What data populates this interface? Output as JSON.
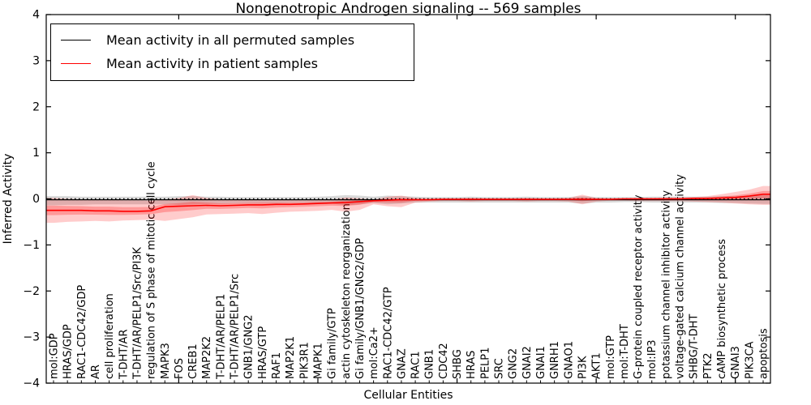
{
  "title": "Nongenotropic Androgen signaling -- 569 samples",
  "legend": {
    "items": [
      {
        "label": "Mean activity in all permuted samples",
        "color": "#000000"
      },
      {
        "label": "Mean activity in patient samples",
        "color": "#ff0000"
      }
    ]
  },
  "chart_data": {
    "type": "line",
    "title": "Nongenotropic Androgen signaling -- 569 samples",
    "xlabel": "Cellular Entities",
    "ylabel": "Inferred Activity",
    "ylim": [
      -4,
      4
    ],
    "yticks": [
      -4,
      -3,
      -2,
      -1,
      0,
      1,
      2,
      3,
      4
    ],
    "grid": false,
    "legend_position": "upper left",
    "xticklabel_rotation": 90,
    "zero_line": {
      "y": 0,
      "style": "dotted",
      "color": "#000000"
    },
    "categories": [
      "mol:GDP",
      "HRAS/GDP",
      "RAC1-CDC42/GDP",
      "AR",
      "cell proliferation",
      "T-DHT/AR",
      "T-DHT/AR/PELP1/Src/PI3K",
      "regulation of S phase of mitotic cell cycle",
      "MAPK3",
      "FOS",
      "CREB1",
      "MAP2K2",
      "T-DHT/AR/PELP1",
      "T-DHT/AR/PELP1/Src",
      "GNB1/GNG2",
      "HRAS/GTP",
      "RAF1",
      "MAP2K1",
      "PIK3R1",
      "MAPK1",
      "Gi family/GTP",
      "actin cytoskeleton reorganization",
      "Gi family/GNB1/GNG2/GDP",
      "mol:Ca2+",
      "RAC1-CDC42/GTP",
      "GNAZ",
      "RAC1",
      "GNB1",
      "CDC42",
      "SHBG",
      "HRAS",
      "PELP1",
      "SRC",
      "GNG2",
      "GNAI2",
      "GNAI1",
      "GNRH1",
      "GNAO1",
      "PI3K",
      "AKT1",
      "mol:GTP",
      "mol:T-DHT",
      "G-protein coupled receptor activity",
      "mol:IP3",
      "potassium channel inhibitor activity",
      "voltage-gated calcium channel activity",
      "SHBG/T-DHT",
      "PTK2",
      "cAMP biosynthetic process",
      "GNAI3",
      "PIK3CA",
      "apoptosis"
    ],
    "series": [
      {
        "name": "Mean activity in all permuted samples",
        "color": "#000000",
        "band_color": "#000000",
        "band_opacity": 0.15,
        "values": [
          -0.02,
          -0.02,
          -0.02,
          -0.02,
          -0.02,
          -0.02,
          -0.02,
          -0.02,
          -0.02,
          -0.02,
          -0.02,
          -0.02,
          -0.02,
          -0.02,
          -0.02,
          -0.02,
          -0.02,
          -0.02,
          -0.02,
          -0.02,
          -0.02,
          -0.02,
          -0.02,
          -0.02,
          -0.02,
          -0.02,
          -0.02,
          -0.02,
          -0.02,
          -0.02,
          -0.02,
          -0.02,
          -0.02,
          -0.02,
          -0.02,
          -0.02,
          -0.02,
          -0.02,
          -0.02,
          -0.02,
          -0.02,
          -0.02,
          -0.02,
          -0.02,
          -0.02,
          -0.02,
          -0.02,
          -0.02,
          -0.02,
          -0.02,
          -0.02,
          -0.02
        ],
        "band_upper": [
          0.06,
          0.06,
          0.05,
          0.05,
          0.05,
          0.05,
          0.05,
          0.05,
          0.05,
          0.06,
          0.06,
          0.05,
          0.05,
          0.04,
          0.04,
          0.04,
          0.04,
          0.04,
          0.04,
          0.05,
          0.06,
          0.08,
          0.07,
          0.05,
          0.07,
          0.06,
          0.05,
          0.04,
          0.04,
          0.04,
          0.05,
          0.04,
          0.04,
          0.04,
          0.05,
          0.04,
          0.04,
          0.04,
          0.06,
          0.04,
          0.04,
          0.04,
          0.04,
          0.05,
          0.05,
          0.05,
          0.05,
          0.05,
          0.06,
          0.06,
          0.07,
          0.08
        ],
        "band_lower": [
          -0.14,
          -0.13,
          -0.13,
          -0.12,
          -0.12,
          -0.12,
          -0.12,
          -0.12,
          -0.12,
          -0.13,
          -0.12,
          -0.11,
          -0.11,
          -0.1,
          -0.1,
          -0.1,
          -0.1,
          -0.09,
          -0.09,
          -0.09,
          -0.1,
          -0.14,
          -0.12,
          -0.09,
          -0.12,
          -0.1,
          -0.08,
          -0.08,
          -0.08,
          -0.08,
          -0.08,
          -0.08,
          -0.08,
          -0.08,
          -0.08,
          -0.08,
          -0.08,
          -0.08,
          -0.1,
          -0.08,
          -0.08,
          -0.07,
          -0.07,
          -0.08,
          -0.08,
          -0.08,
          -0.08,
          -0.08,
          -0.09,
          -0.09,
          -0.1,
          -0.11
        ]
      },
      {
        "name": "Mean activity in patient samples",
        "color": "#ff0000",
        "band_color": "#ff0000",
        "band_opacity": 0.2,
        "values": [
          -0.25,
          -0.25,
          -0.25,
          -0.26,
          -0.26,
          -0.27,
          -0.27,
          -0.26,
          -0.17,
          -0.16,
          -0.15,
          -0.14,
          -0.15,
          -0.14,
          -0.13,
          -0.13,
          -0.12,
          -0.12,
          -0.11,
          -0.1,
          -0.09,
          -0.08,
          -0.06,
          -0.04,
          -0.03,
          -0.02,
          -0.02,
          -0.02,
          -0.01,
          -0.01,
          -0.01,
          -0.01,
          -0.01,
          -0.01,
          -0.01,
          -0.01,
          -0.01,
          -0.01,
          -0.01,
          -0.01,
          -0.01,
          0.0,
          0.0,
          0.0,
          0.0,
          0.0,
          0.01,
          0.01,
          0.02,
          0.03,
          0.06,
          0.1
        ],
        "band_upper": [
          0.02,
          0.0,
          -0.01,
          -0.02,
          -0.02,
          -0.03,
          -0.03,
          -0.04,
          -0.02,
          0.02,
          0.08,
          0.02,
          -0.01,
          -0.02,
          -0.02,
          -0.01,
          -0.02,
          -0.02,
          -0.03,
          -0.02,
          -0.02,
          0.03,
          0.01,
          -0.02,
          0.05,
          0.07,
          0.02,
          0.01,
          0.01,
          0.01,
          0.02,
          0.01,
          0.01,
          0.01,
          0.02,
          0.01,
          0.01,
          0.02,
          0.09,
          0.02,
          0.01,
          0.01,
          0.02,
          0.02,
          0.03,
          0.03,
          0.04,
          0.06,
          0.1,
          0.15,
          0.2,
          0.28
        ],
        "band_lower": [
          -0.52,
          -0.5,
          -0.49,
          -0.48,
          -0.49,
          -0.47,
          -0.46,
          -0.45,
          -0.48,
          -0.44,
          -0.4,
          -0.34,
          -0.33,
          -0.32,
          -0.31,
          -0.33,
          -0.3,
          -0.28,
          -0.27,
          -0.26,
          -0.24,
          -0.28,
          -0.24,
          -0.12,
          -0.16,
          -0.18,
          -0.08,
          -0.06,
          -0.05,
          -0.05,
          -0.06,
          -0.05,
          -0.05,
          -0.05,
          -0.06,
          -0.05,
          -0.05,
          -0.06,
          -0.12,
          -0.06,
          -0.04,
          -0.04,
          -0.05,
          -0.05,
          -0.05,
          -0.05,
          -0.06,
          -0.07,
          -0.08,
          -0.1,
          -0.12,
          -0.13
        ]
      }
    ]
  }
}
